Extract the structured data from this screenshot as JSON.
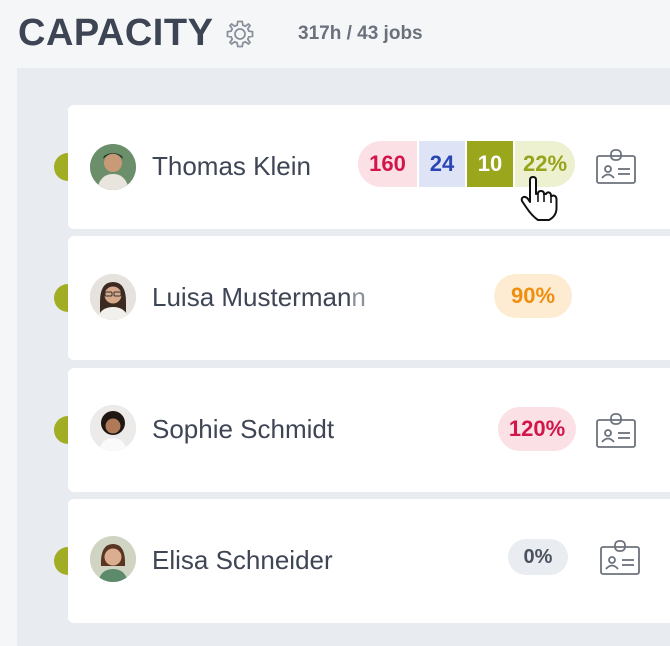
{
  "header": {
    "title": "CAPACITY",
    "summary": "317h / 43 jobs"
  },
  "people": [
    {
      "name": "Thomas Klein",
      "segments": [
        "160",
        "24",
        "10",
        "22%"
      ],
      "has_card_icon": true
    },
    {
      "name_main": "Luisa Musterman",
      "name_tail": "n",
      "percent": "90%",
      "has_card_icon": false
    },
    {
      "name": "Sophie Schmidt",
      "percent": "120%",
      "has_card_icon": true
    },
    {
      "name": "Elisa Schneider",
      "percent": "0%",
      "has_card_icon": true
    }
  ],
  "colors": {
    "accent_olive": "#9aa61c",
    "red": "#d3164a",
    "blue": "#2a45b6",
    "orange": "#f39c12"
  }
}
